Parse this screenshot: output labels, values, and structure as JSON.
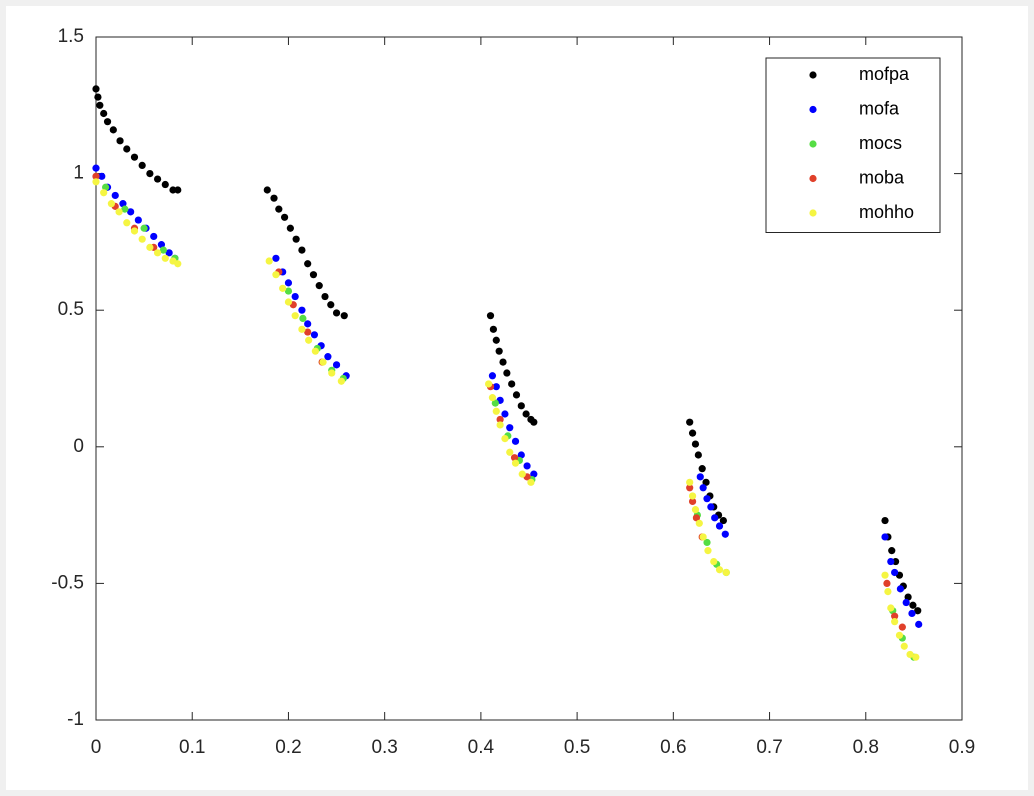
{
  "chart_data": {
    "type": "scatter",
    "xlim": [
      0,
      0.9
    ],
    "ylim": [
      -1,
      1.5
    ],
    "xticks": [
      0,
      0.1,
      0.2,
      0.3,
      0.4,
      0.5,
      0.6,
      0.7,
      0.8,
      0.9
    ],
    "yticks": [
      -1,
      -0.5,
      0,
      0.5,
      1,
      1.5
    ],
    "legend": "northeast",
    "series": [
      {
        "name": "mofpa",
        "color": "#000000",
        "x": [
          0,
          0.002,
          0.004,
          0.008,
          0.012,
          0.018,
          0.025,
          0.032,
          0.04,
          0.048,
          0.056,
          0.064,
          0.072,
          0.08,
          0.085,
          0.178,
          0.185,
          0.19,
          0.196,
          0.202,
          0.208,
          0.214,
          0.22,
          0.226,
          0.232,
          0.238,
          0.244,
          0.25,
          0.258,
          0.41,
          0.413,
          0.416,
          0.419,
          0.423,
          0.427,
          0.432,
          0.437,
          0.442,
          0.447,
          0.452,
          0.455,
          0.617,
          0.62,
          0.623,
          0.626,
          0.63,
          0.634,
          0.638,
          0.642,
          0.647,
          0.652,
          0.82,
          0.823,
          0.827,
          0.831,
          0.835,
          0.839,
          0.844,
          0.849,
          0.854
        ],
        "values": [
          1.31,
          1.28,
          1.25,
          1.22,
          1.19,
          1.16,
          1.12,
          1.09,
          1.06,
          1.03,
          1.0,
          0.98,
          0.96,
          0.94,
          0.94,
          0.94,
          0.91,
          0.87,
          0.84,
          0.8,
          0.76,
          0.72,
          0.67,
          0.63,
          0.59,
          0.55,
          0.52,
          0.49,
          0.48,
          0.48,
          0.43,
          0.39,
          0.35,
          0.31,
          0.27,
          0.23,
          0.19,
          0.15,
          0.12,
          0.1,
          0.09,
          0.09,
          0.05,
          0.01,
          -0.03,
          -0.08,
          -0.13,
          -0.18,
          -0.22,
          -0.25,
          -0.27,
          -0.27,
          -0.33,
          -0.38,
          -0.42,
          -0.47,
          -0.51,
          -0.55,
          -0.58,
          -0.6
        ]
      },
      {
        "name": "mofa",
        "color": "#0000ff",
        "x": [
          0,
          0.006,
          0.012,
          0.02,
          0.028,
          0.036,
          0.044,
          0.052,
          0.06,
          0.068,
          0.076,
          0.082,
          0.187,
          0.194,
          0.2,
          0.207,
          0.214,
          0.22,
          0.227,
          0.234,
          0.241,
          0.25,
          0.26,
          0.412,
          0.416,
          0.42,
          0.425,
          0.43,
          0.436,
          0.442,
          0.448,
          0.455,
          0.628,
          0.631,
          0.635,
          0.639,
          0.643,
          0.648,
          0.654,
          0.82,
          0.826,
          0.83,
          0.836,
          0.842,
          0.848,
          0.855
        ],
        "values": [
          1.02,
          0.99,
          0.95,
          0.92,
          0.89,
          0.86,
          0.83,
          0.8,
          0.77,
          0.74,
          0.71,
          0.69,
          0.69,
          0.64,
          0.6,
          0.55,
          0.5,
          0.45,
          0.41,
          0.37,
          0.33,
          0.3,
          0.26,
          0.26,
          0.22,
          0.17,
          0.12,
          0.07,
          0.02,
          -0.03,
          -0.07,
          -0.1,
          -0.11,
          -0.15,
          -0.19,
          -0.22,
          -0.26,
          -0.29,
          -0.32,
          -0.33,
          -0.42,
          -0.46,
          -0.52,
          -0.57,
          -0.61,
          -0.65
        ]
      },
      {
        "name": "mocs",
        "color": "#55dd44",
        "x": [
          0.01,
          0.03,
          0.05,
          0.07,
          0.082,
          0.2,
          0.215,
          0.23,
          0.245,
          0.257,
          0.415,
          0.428,
          0.44,
          0.453,
          0.625,
          0.635,
          0.645,
          0.655,
          0.828,
          0.838,
          0.85
        ],
        "values": [
          0.95,
          0.87,
          0.8,
          0.72,
          0.69,
          0.57,
          0.47,
          0.36,
          0.28,
          0.25,
          0.16,
          0.04,
          -0.05,
          -0.12,
          -0.25,
          -0.35,
          -0.43,
          -0.46,
          -0.6,
          -0.7,
          -0.77
        ]
      },
      {
        "name": "moba",
        "color": "#e0402a",
        "x": [
          0,
          0.02,
          0.04,
          0.06,
          0.19,
          0.205,
          0.22,
          0.235,
          0.41,
          0.42,
          0.435,
          0.448,
          0.617,
          0.62,
          0.624,
          0.63,
          0.822,
          0.83,
          0.838
        ],
        "values": [
          0.99,
          0.88,
          0.8,
          0.73,
          0.64,
          0.52,
          0.42,
          0.31,
          0.22,
          0.1,
          -0.04,
          -0.11,
          -0.15,
          -0.2,
          -0.26,
          -0.33,
          -0.5,
          -0.62,
          -0.66
        ]
      },
      {
        "name": "mohho",
        "color": "#f5f542",
        "x": [
          0,
          0.008,
          0.016,
          0.024,
          0.032,
          0.04,
          0.048,
          0.056,
          0.064,
          0.072,
          0.08,
          0.085,
          0.18,
          0.187,
          0.194,
          0.2,
          0.207,
          0.214,
          0.221,
          0.228,
          0.236,
          0.245,
          0.255,
          0.408,
          0.412,
          0.416,
          0.42,
          0.425,
          0.43,
          0.436,
          0.443,
          0.452,
          0.617,
          0.62,
          0.623,
          0.627,
          0.631,
          0.636,
          0.642,
          0.648,
          0.655,
          0.82,
          0.823,
          0.826,
          0.83,
          0.835,
          0.84,
          0.846,
          0.852
        ],
        "values": [
          0.97,
          0.93,
          0.89,
          0.86,
          0.82,
          0.79,
          0.76,
          0.73,
          0.71,
          0.69,
          0.68,
          0.67,
          0.68,
          0.63,
          0.58,
          0.53,
          0.48,
          0.43,
          0.39,
          0.35,
          0.31,
          0.27,
          0.24,
          0.23,
          0.18,
          0.13,
          0.08,
          0.03,
          -0.02,
          -0.06,
          -0.1,
          -0.13,
          -0.13,
          -0.18,
          -0.23,
          -0.28,
          -0.33,
          -0.38,
          -0.42,
          -0.45,
          -0.46,
          -0.47,
          -0.53,
          -0.59,
          -0.64,
          -0.69,
          -0.73,
          -0.76,
          -0.77
        ]
      }
    ]
  }
}
